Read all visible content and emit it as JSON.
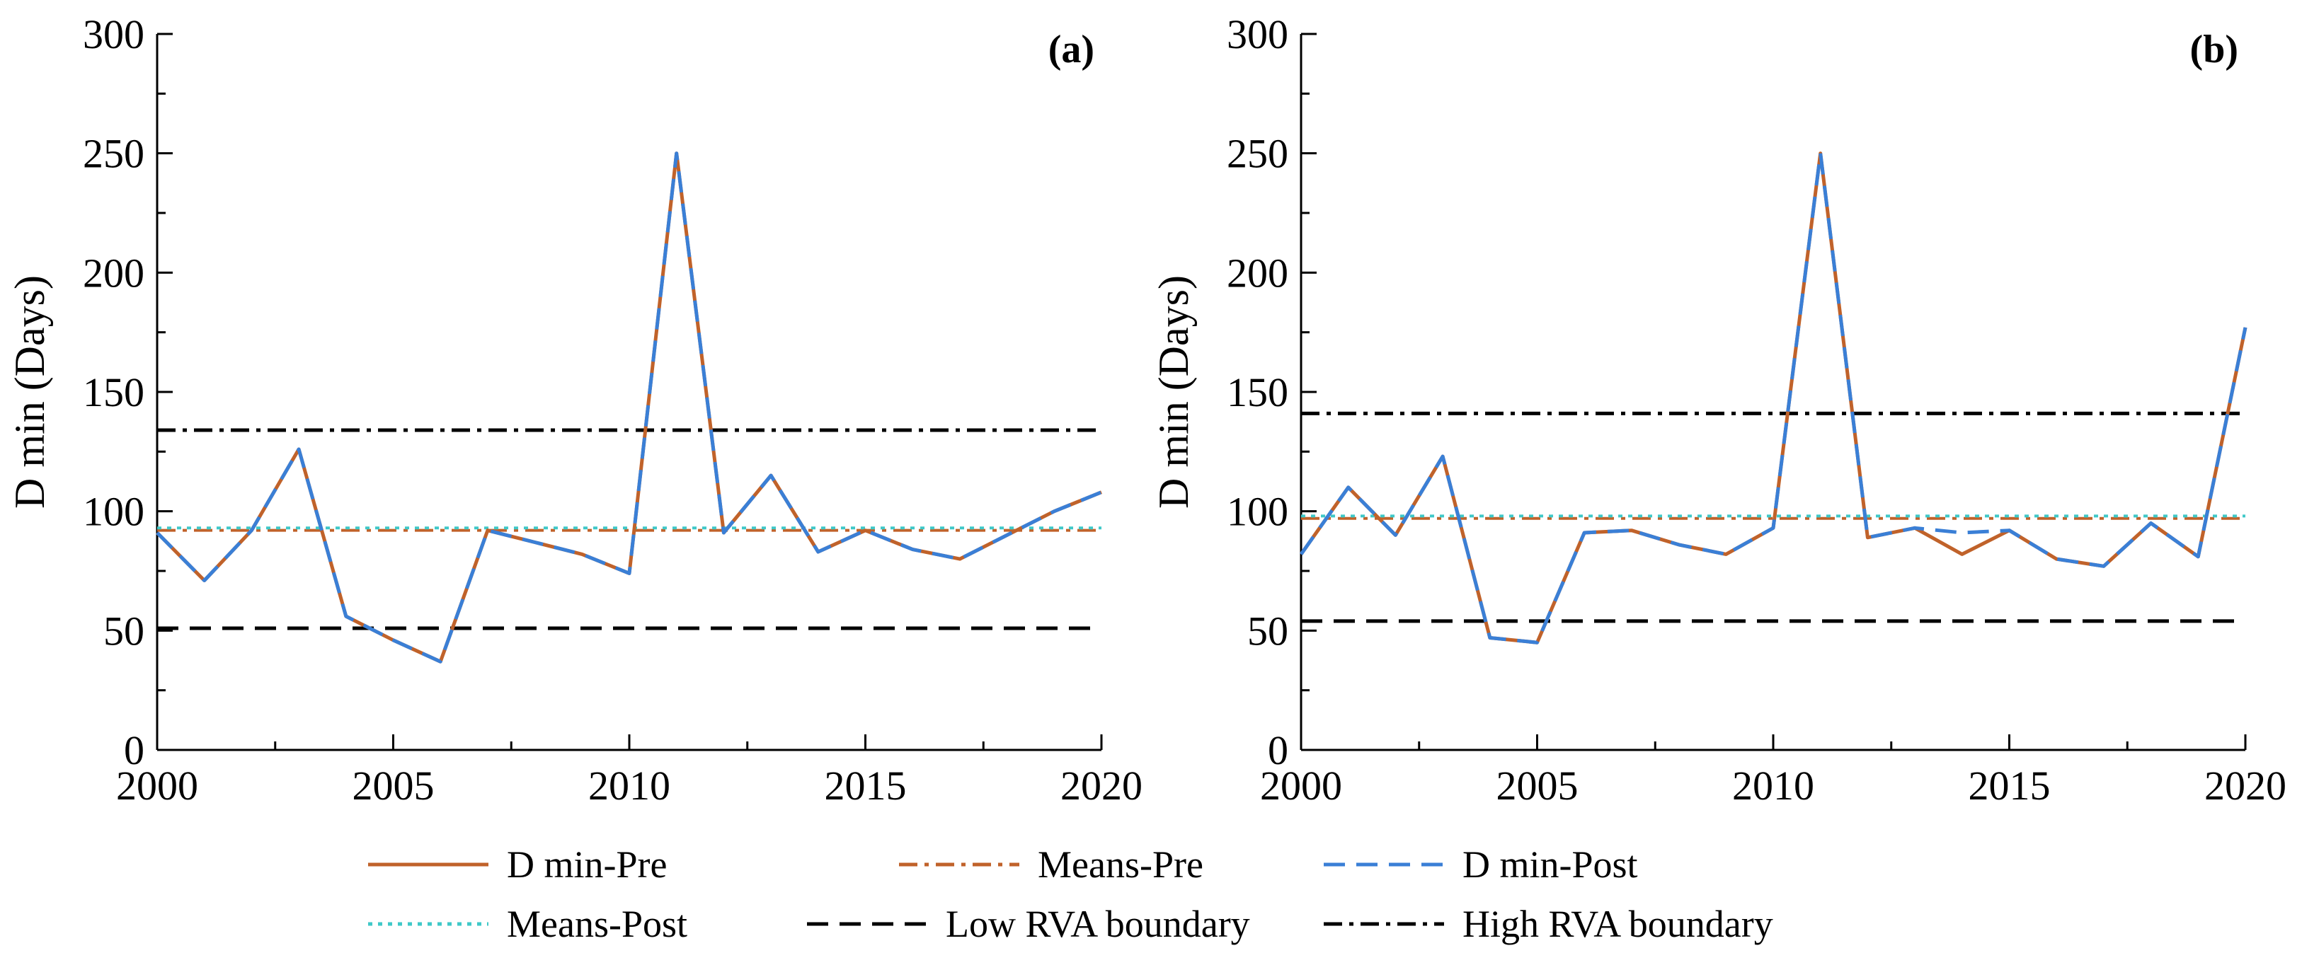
{
  "chart_data": [
    {
      "type": "line",
      "panel_label": "(a)",
      "xlabel": "",
      "ylabel": "D min (Days)",
      "xlim": [
        2000,
        2020
      ],
      "ylim": [
        0,
        300
      ],
      "xticks": [
        "2000",
        "2005",
        "2010",
        "2015",
        "2020"
      ],
      "yticks": [
        "0",
        "50",
        "100",
        "150",
        "200",
        "250",
        "300"
      ],
      "x": [
        2000,
        2001,
        2002,
        2003,
        2004,
        2005,
        2006,
        2007,
        2008,
        2009,
        2010,
        2011,
        2012,
        2013,
        2014,
        2015,
        2016,
        2017,
        2018,
        2019,
        2020
      ],
      "series": [
        {
          "name": "D min-Pre",
          "values": [
            91,
            71,
            92,
            126,
            56,
            46,
            37,
            92,
            87,
            82,
            74,
            250,
            91,
            115,
            83,
            92,
            84,
            80,
            90,
            100,
            108
          ]
        },
        {
          "name": "D min-Post",
          "values": [
            91,
            71,
            92,
            126,
            56,
            46,
            37,
            92,
            87,
            82,
            74,
            250,
            91,
            115,
            83,
            92,
            84,
            80,
            90,
            100,
            108
          ]
        }
      ],
      "hlines": [
        {
          "name": "Means-Pre",
          "value": 92
        },
        {
          "name": "Means-Post",
          "value": 93
        },
        {
          "name": "Low RVA boundary",
          "value": 51
        },
        {
          "name": "High RVA boundary",
          "value": 134
        }
      ]
    },
    {
      "type": "line",
      "panel_label": "(b)",
      "xlabel": "",
      "ylabel": "D min (Days)",
      "xlim": [
        2000,
        2020
      ],
      "ylim": [
        0,
        300
      ],
      "xticks": [
        "2000",
        "2005",
        "2010",
        "2015",
        "2020"
      ],
      "yticks": [
        "0",
        "50",
        "100",
        "150",
        "200",
        "250",
        "300"
      ],
      "x": [
        2000,
        2001,
        2002,
        2003,
        2004,
        2005,
        2006,
        2007,
        2008,
        2009,
        2010,
        2011,
        2012,
        2013,
        2014,
        2015,
        2016,
        2017,
        2018,
        2019,
        2020
      ],
      "series": [
        {
          "name": "D min-Pre",
          "values": [
            82,
            110,
            90,
            123,
            47,
            45,
            91,
            92,
            86,
            82,
            93,
            250,
            89,
            93,
            82,
            92,
            80,
            77,
            95,
            81,
            177
          ]
        },
        {
          "name": "D min-Post",
          "values": [
            82,
            110,
            90,
            123,
            47,
            45,
            91,
            92,
            86,
            82,
            93,
            250,
            89,
            93,
            91,
            92,
            80,
            77,
            95,
            81,
            177
          ]
        }
      ],
      "hlines": [
        {
          "name": "Means-Pre",
          "value": 97
        },
        {
          "name": "Means-Post",
          "value": 98
        },
        {
          "name": "Low RVA boundary",
          "value": 54
        },
        {
          "name": "High RVA boundary",
          "value": 141
        }
      ]
    }
  ],
  "legend": {
    "items": [
      {
        "key": "D min-Pre",
        "label": "D min-Pre",
        "color": "#C0622A",
        "dash": "solid"
      },
      {
        "key": "Means-Pre",
        "label": "Means-Pre",
        "color": "#C0622A",
        "dash": "dashdot"
      },
      {
        "key": "D min-Post",
        "label": "D min-Post",
        "color": "#3A7FD6",
        "dash": "dash"
      },
      {
        "key": "Means-Post",
        "label": "Means-Post",
        "color": "#3FC8C8",
        "dash": "dot"
      },
      {
        "key": "Low RVA boundary",
        "label": "Low RVA boundary",
        "color": "#000000",
        "dash": "dash"
      },
      {
        "key": "High RVA boundary",
        "label": "High RVA boundary",
        "color": "#000000",
        "dash": "dashdot"
      }
    ]
  },
  "colors": {
    "pre": "#C0622A",
    "post": "#3A7FD6",
    "means_post": "#3FC8C8",
    "rva": "#000000"
  }
}
